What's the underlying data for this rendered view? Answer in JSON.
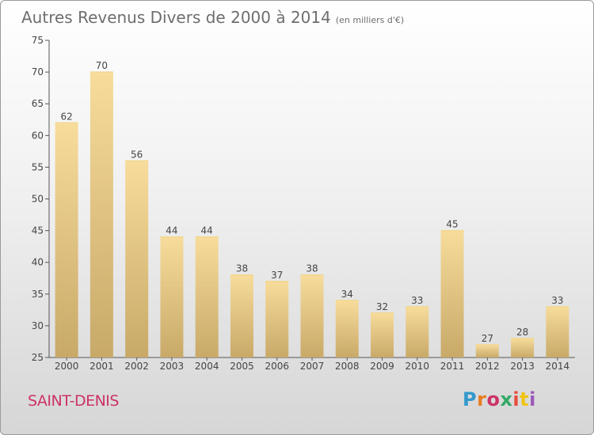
{
  "title": "Autres Revenus Divers de 2000 à 2014",
  "unit": "(en milliers d'€)",
  "place": "SAINT-DENIS",
  "logo": {
    "text": "Proxiti",
    "colors": [
      "#3399cc",
      "#e67e22",
      "#cc3366",
      "#33aa66",
      "#e74c3c",
      "#f1c40f",
      "#9b59b6"
    ]
  },
  "colors": {
    "bar_top": "#f7dc9c",
    "bar_bottom": "#c8a968",
    "place": "#cc3366",
    "title": "#6e6e6e",
    "axis": "#555555"
  },
  "chart_data": {
    "type": "bar",
    "categories": [
      "2000",
      "2001",
      "2002",
      "2003",
      "2004",
      "2005",
      "2006",
      "2007",
      "2008",
      "2009",
      "2010",
      "2011",
      "2012",
      "2013",
      "2014"
    ],
    "values": [
      62,
      70,
      56,
      44,
      44,
      38,
      37,
      38,
      34,
      32,
      33,
      45,
      27,
      28,
      33
    ],
    "ylim": [
      25,
      75
    ],
    "yticks": [
      25,
      30,
      35,
      40,
      45,
      50,
      55,
      60,
      65,
      70,
      75
    ],
    "grid": false,
    "data_labels": true
  }
}
